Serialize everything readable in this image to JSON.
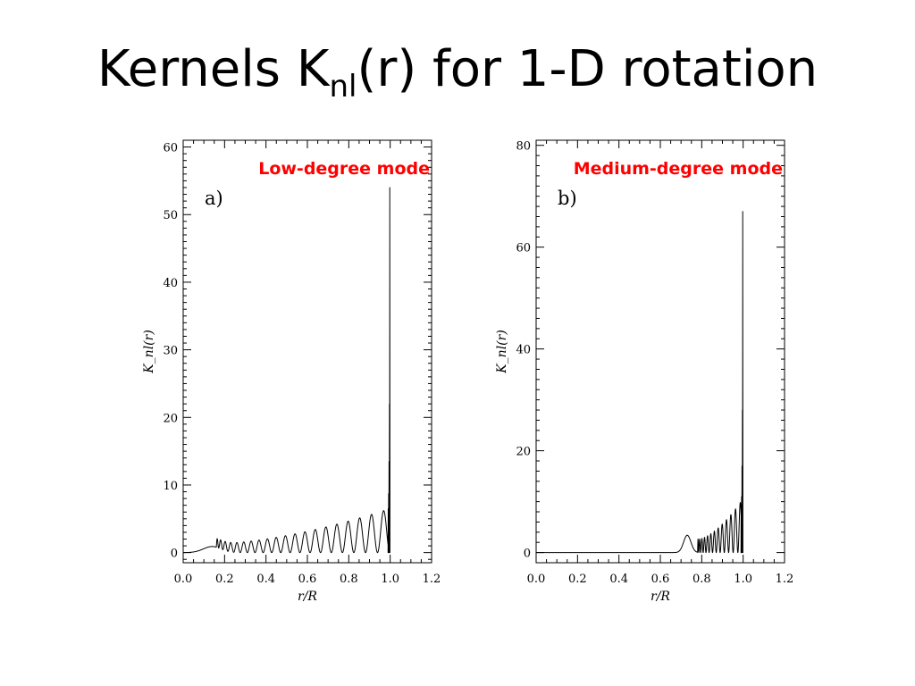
{
  "slide": {
    "title_main": "Kernels K",
    "title_sub": "nl",
    "title_rest": "(r) for 1-D rotation"
  },
  "chart_data": [
    {
      "type": "line",
      "annotation": "Low-degree mode",
      "panel_label": "a)",
      "xlabel": "r/R",
      "ylabel": "K_nl(r)",
      "xlim": [
        0.0,
        1.2
      ],
      "ylim": [
        -1.5,
        61
      ],
      "xticks": [
        "0.0",
        "0.2",
        "0.4",
        "0.6",
        "0.8",
        "1.0",
        "1.2"
      ],
      "yticks": [
        "0",
        "10",
        "20",
        "30",
        "40",
        "50",
        "60"
      ],
      "grid": false,
      "kernel": {
        "onset_r": 0.0,
        "baseline": 0.0,
        "bump": {
          "r": 0.14,
          "height": 0.9,
          "width": 0.06
        },
        "osc_start_r": 0.16,
        "osc_start_amplitude": 1.3,
        "osc_end_amplitude": 6.5,
        "oscillations": 20,
        "peak_r": 0.998,
        "peak_value": 54.0,
        "envelope_peaks": [
          22.0,
          13.5,
          8.7,
          6.5
        ]
      }
    },
    {
      "type": "line",
      "annotation": "Medium-degree mode",
      "panel_label": "b)",
      "xlabel": "r/R",
      "ylabel": "K_nl(r)",
      "xlim": [
        0.0,
        1.2
      ],
      "ylim": [
        -2,
        81
      ],
      "xticks": [
        "0.0",
        "0.2",
        "0.4",
        "0.6",
        "0.8",
        "1.0",
        "1.2"
      ],
      "yticks": [
        "0",
        "20",
        "40",
        "60",
        "80"
      ],
      "grid": false,
      "kernel": {
        "onset_r": 0.63,
        "baseline": 0.0,
        "bump": {
          "r": 0.73,
          "height": 3.4,
          "width": 0.025
        },
        "osc_start_r": 0.78,
        "osc_start_amplitude": 2.6,
        "osc_end_amplitude": 10.5,
        "oscillations": 13,
        "peak_r": 0.998,
        "peak_value": 67.0,
        "envelope_peaks": [
          28.0,
          17.0,
          11.0,
          8.5
        ]
      }
    }
  ]
}
